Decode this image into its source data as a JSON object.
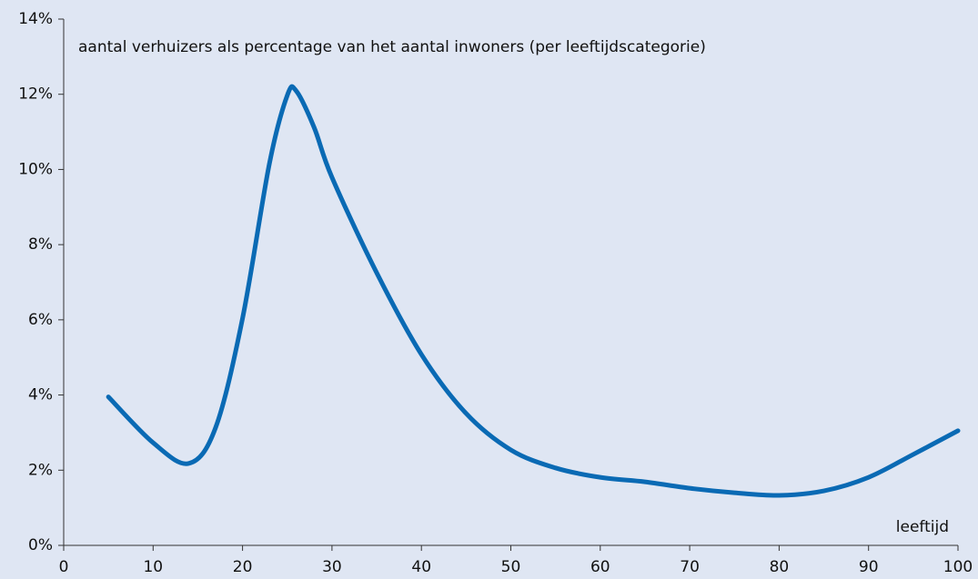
{
  "chart_data": {
    "type": "line",
    "annotation": "aantal verhuizers als percentage van het aantal inwoners (per leeftijdscategorie)",
    "x_label": "leeftijd",
    "x": [
      5,
      10,
      14,
      17,
      20,
      23,
      25,
      26,
      28,
      30,
      35,
      40,
      45,
      50,
      55,
      60,
      65,
      70,
      75,
      80,
      85,
      90,
      95,
      100
    ],
    "series": [
      {
        "color": "#0a6ab4",
        "values": [
          3.95,
          2.73,
          2.18,
          3.14,
          6.04,
          10.15,
          11.97,
          12.09,
          11.12,
          9.79,
          7.25,
          5.08,
          3.51,
          2.54,
          2.06,
          1.81,
          1.69,
          1.52,
          1.4,
          1.33,
          1.45,
          1.81,
          2.42,
          3.05
        ]
      }
    ],
    "xlim": [
      0,
      100
    ],
    "xticks": [
      0,
      10,
      20,
      30,
      40,
      50,
      60,
      70,
      80,
      90,
      100
    ],
    "ylim": [
      0,
      14
    ],
    "yticks": [
      {
        "value": 0,
        "label": "0%"
      },
      {
        "value": 2,
        "label": "2%"
      },
      {
        "value": 4,
        "label": "4%"
      },
      {
        "value": 6,
        "label": "6%"
      },
      {
        "value": 8,
        "label": "8%"
      },
      {
        "value": 10,
        "label": "10%"
      },
      {
        "value": 12,
        "label": "12%"
      },
      {
        "value": 14,
        "label": "14%"
      }
    ]
  }
}
